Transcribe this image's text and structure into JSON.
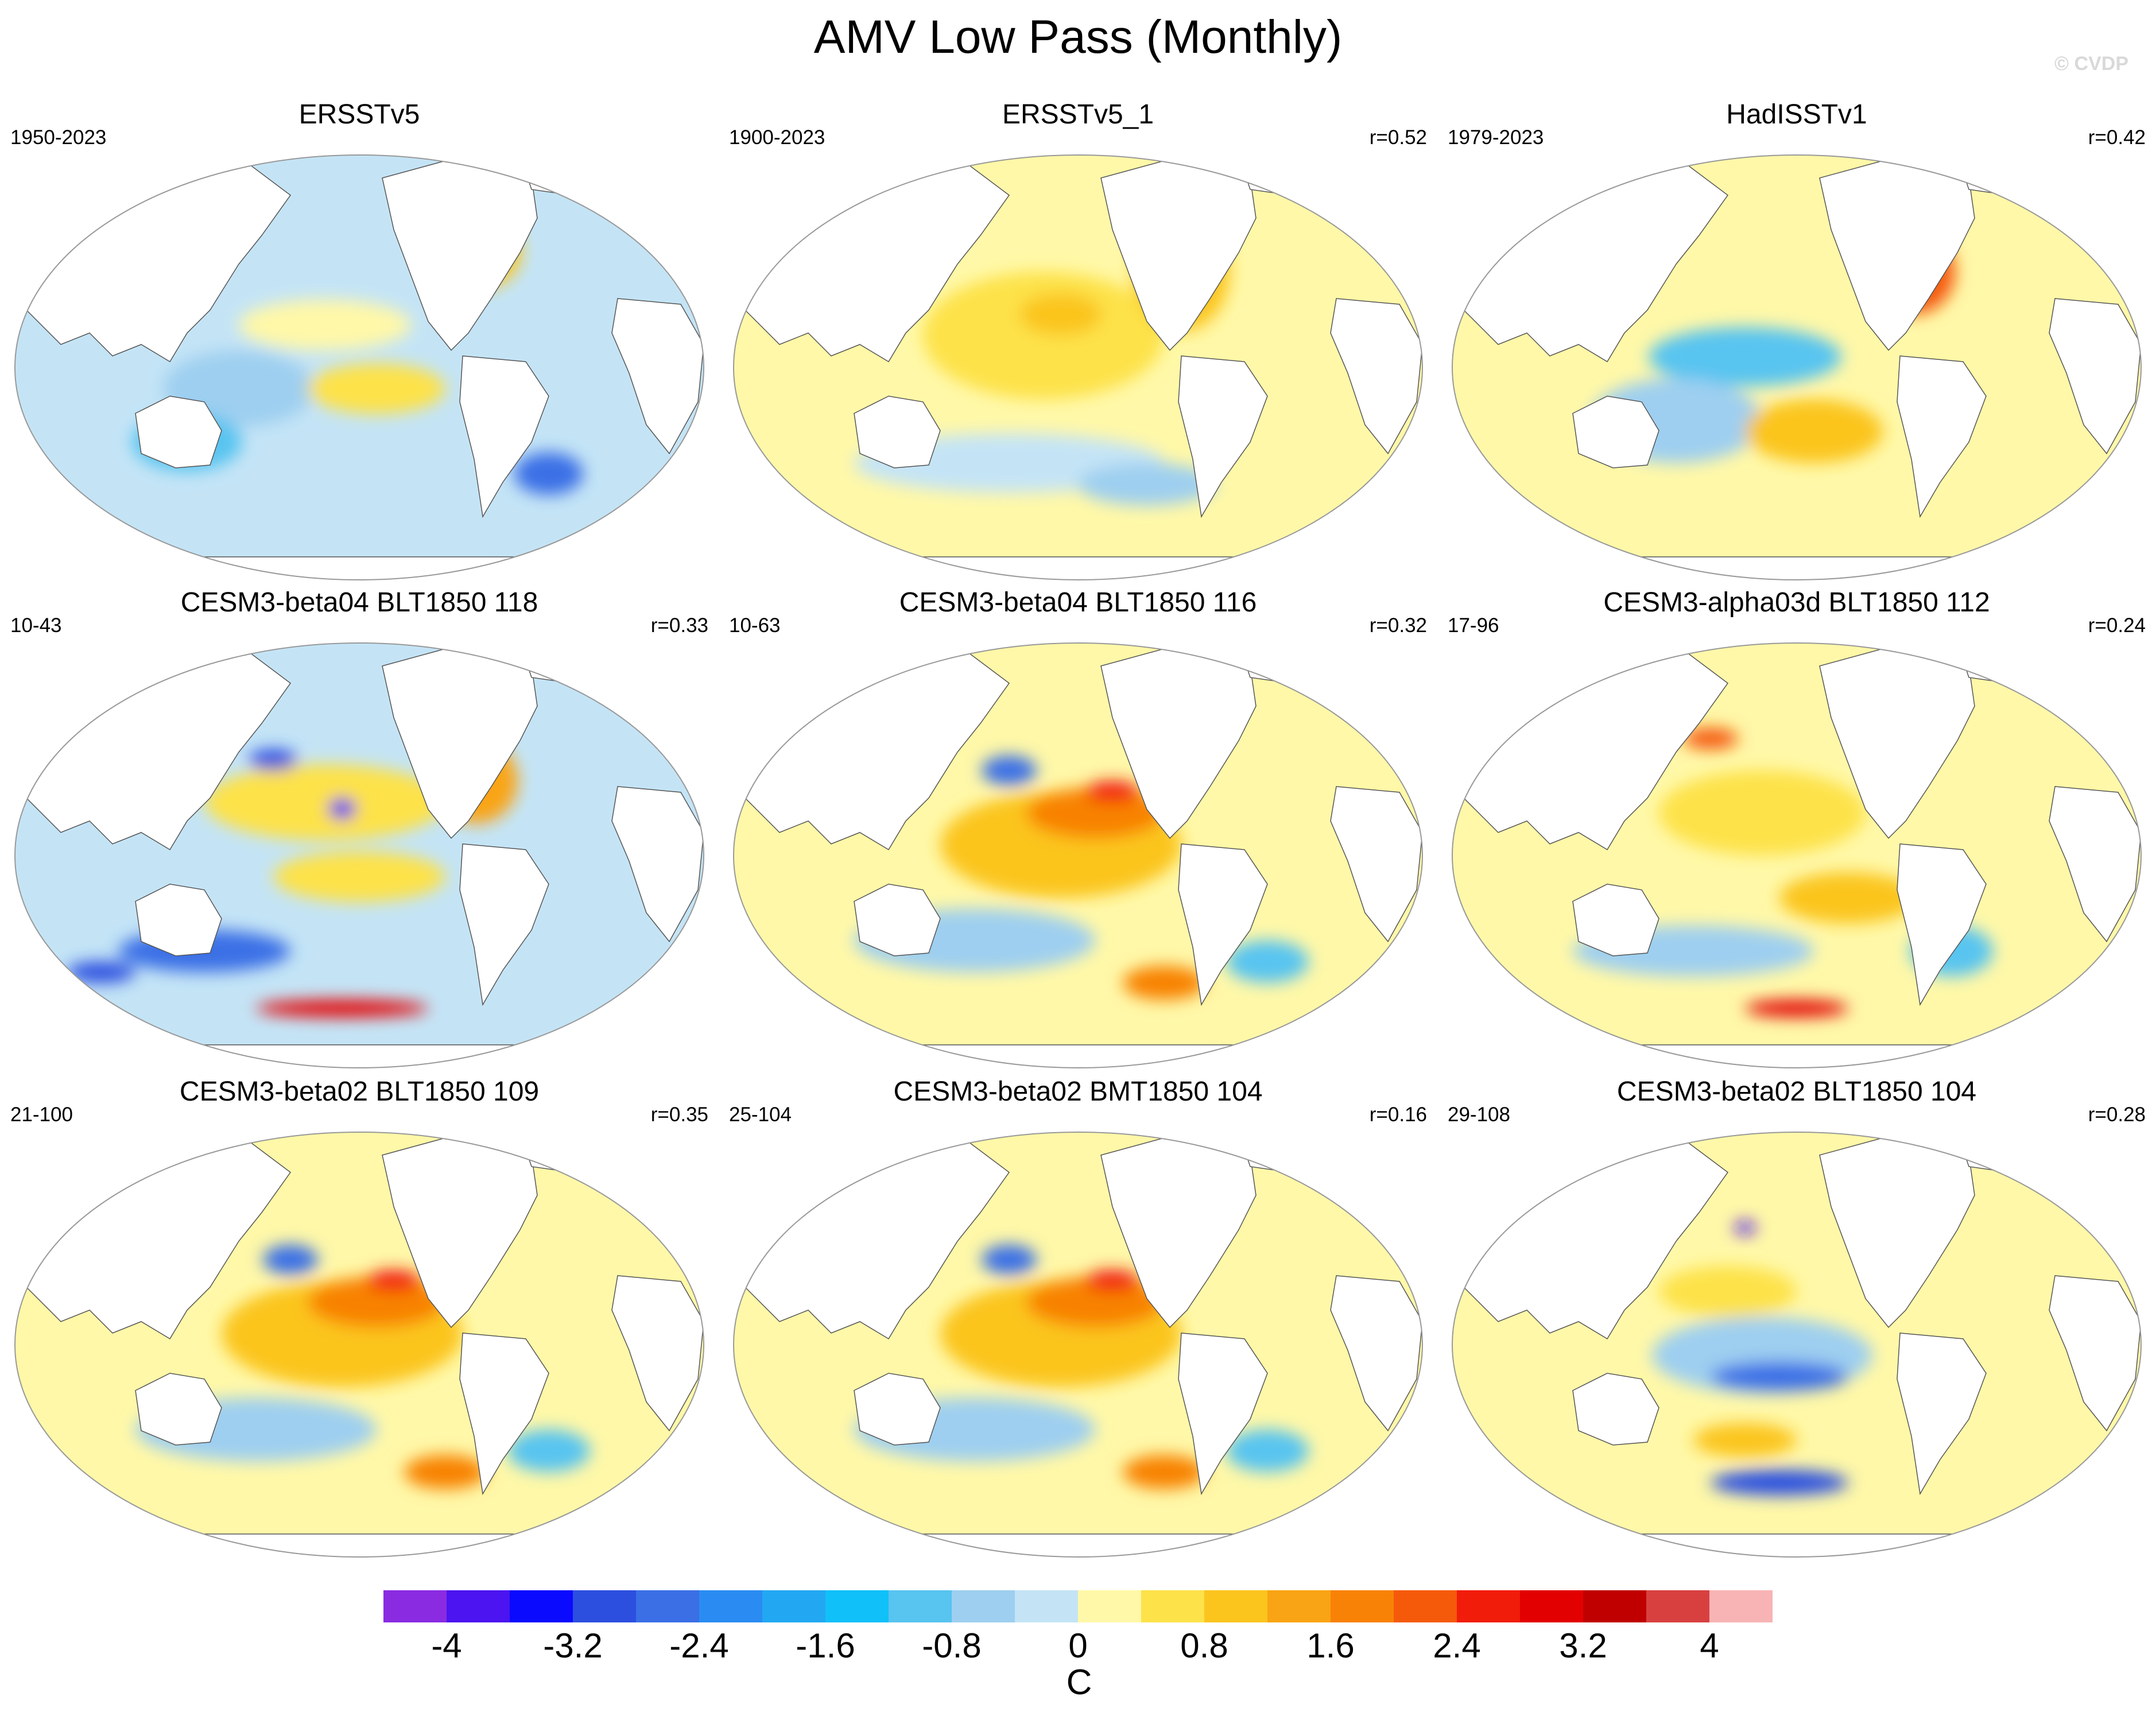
{
  "figure": {
    "title": "AMV Low Pass (Monthly)",
    "watermark": "© CVDP"
  },
  "panels": [
    {
      "title": "ERSSTv5",
      "years": "1950-2023",
      "r": "",
      "pattern": "obs-cool"
    },
    {
      "title": "ERSSTv5_1",
      "years": "1900-2023",
      "r": "r=0.52",
      "pattern": "obs-warm"
    },
    {
      "title": "HadISSTv1",
      "years": "1979-2023",
      "r": "r=0.42",
      "pattern": "obs-mixed"
    },
    {
      "title": "CESM3-beta04 BLT1850 118",
      "years": "10-43",
      "r": "r=0.33",
      "pattern": "model-strong"
    },
    {
      "title": "CESM3-beta04 BLT1850 116",
      "years": "10-63",
      "r": "r=0.32",
      "pattern": "model-warm"
    },
    {
      "title": "CESM3-alpha03d BLT1850 112",
      "years": "17-96",
      "r": "r=0.24",
      "pattern": "model-mixed"
    },
    {
      "title": "CESM3-beta02 BLT1850 109",
      "years": "21-100",
      "r": "r=0.35",
      "pattern": "model-warm"
    },
    {
      "title": "CESM3-beta02 BMT1850 104",
      "years": "25-104",
      "r": "r=0.16",
      "pattern": "model-warm"
    },
    {
      "title": "CESM3-beta02 BLT1850 104",
      "years": "29-108",
      "r": "r=0.28",
      "pattern": "model-cool-pacific"
    }
  ],
  "colorbar": {
    "units": "C",
    "labels": [
      "-4",
      "-3.2",
      "-2.4",
      "-1.6",
      "-0.8",
      "0",
      "0.8",
      "1.6",
      "2.4",
      "3.2",
      "4"
    ],
    "colors": [
      "#8a2be2",
      "#4b14f0",
      "#0a0aff",
      "#2c4fe0",
      "#3a6fe6",
      "#2a8cf2",
      "#22a8f2",
      "#10c0f8",
      "#58c4f0",
      "#9ecff0",
      "#c4e4f6",
      "#fff8a8",
      "#fde24a",
      "#fbc51e",
      "#f9a414",
      "#f88206",
      "#f55a0a",
      "#f21c0a",
      "#e20000",
      "#c00000",
      "#d84040",
      "#f8b4b4"
    ]
  }
}
